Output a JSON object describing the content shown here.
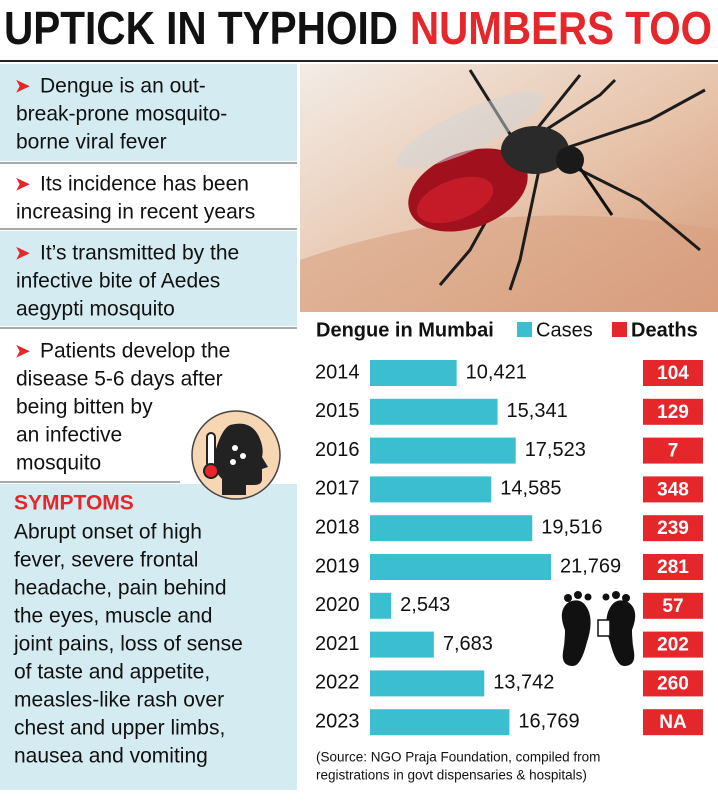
{
  "header": {
    "title_black": "UPTICK IN TYPHOID",
    "title_red": "NUMBERS TOO"
  },
  "facts": [
    [
      "Dengue is an out-",
      "break-prone mosquito-",
      "borne viral fever"
    ],
    [
      "Its incidence has been",
      "increasing in recent years"
    ],
    [
      "It’s transmitted by the",
      "infective bite of Aedes",
      "aegypti mosquito"
    ],
    [
      "Patients develop the",
      "disease 5-6 days after",
      "being bitten by",
      "an infective",
      "mosquito"
    ]
  ],
  "symptoms": {
    "heading": "SYMPTOMS",
    "lines": [
      "Abrupt onset of high",
      "fever, severe frontal",
      "headache, pain behind",
      "the eyes, muscle and",
      "joint pains, loss of sense",
      "of taste and appetite,",
      "measles-like rash over",
      "chest and upper limbs,",
      "nausea and vomiting"
    ]
  },
  "chart_data": {
    "type": "bar",
    "title": "Dengue in Mumbai",
    "categories": [
      "2014",
      "2015",
      "2016",
      "2017",
      "2018",
      "2019",
      "2020",
      "2021",
      "2022",
      "2023"
    ],
    "series": [
      {
        "name": "Cases",
        "color": "#3bbfd0",
        "values": [
          10421,
          15341,
          17523,
          14585,
          19516,
          21769,
          2543,
          7683,
          13742,
          16769
        ],
        "value_labels": [
          "10,421",
          "15,341",
          "17,523",
          "14,585",
          "19,516",
          "21,769",
          "2,543",
          "7,683",
          "13,742",
          "16,769"
        ]
      },
      {
        "name": "Deaths",
        "color": "#e5262b",
        "values": [
          104,
          129,
          7,
          348,
          239,
          281,
          57,
          202,
          260,
          null
        ],
        "value_labels": [
          "104",
          "129",
          "7",
          "348",
          "239",
          "281",
          "57",
          "202",
          "260",
          "NA"
        ]
      }
    ],
    "note": [
      "(Source: NGO Praja Foundation, compiled from",
      "registrations in govt dispensaries & hospitals)"
    ]
  }
}
